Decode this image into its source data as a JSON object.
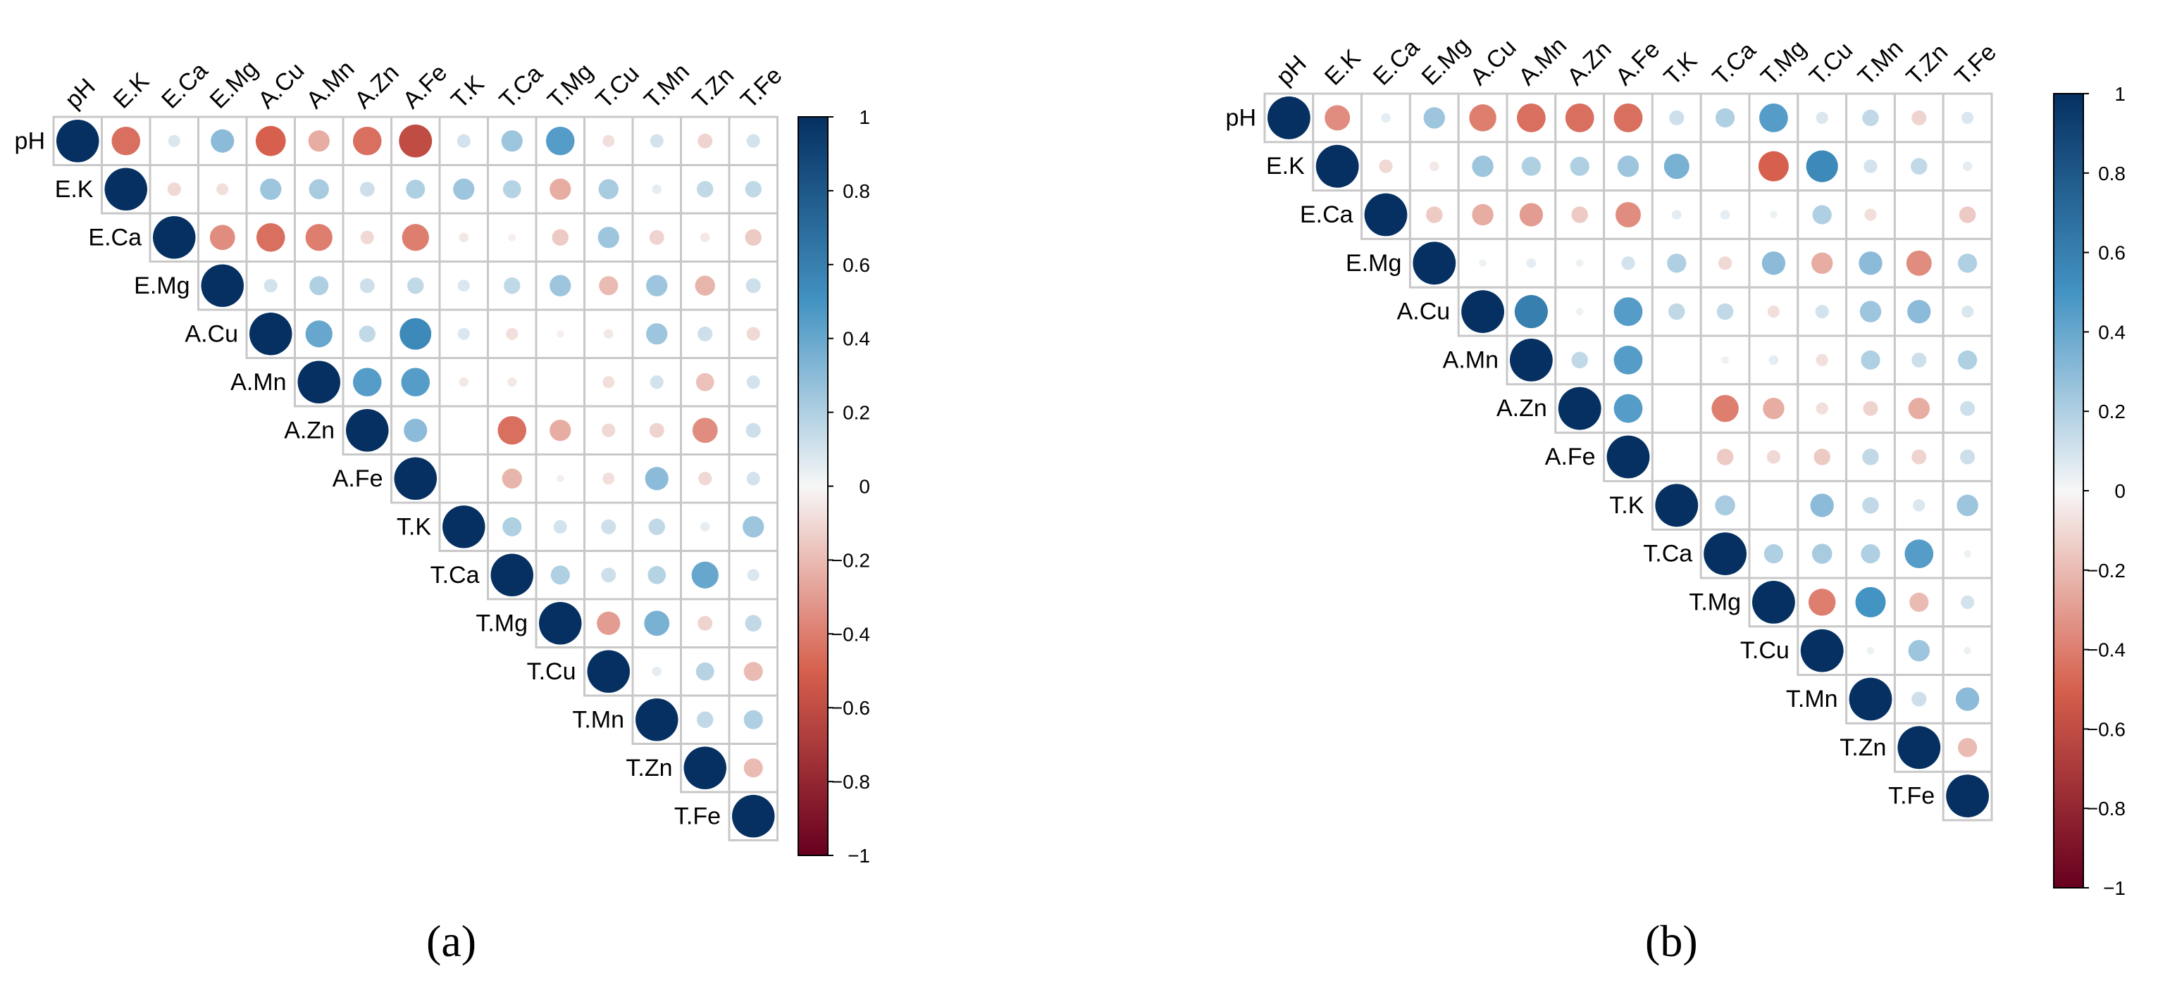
{
  "figure": {
    "labels": [
      "(a)",
      "(b)"
    ]
  },
  "colors": {
    "neg_max": "#67001f",
    "neg_mid": "#d6604d",
    "zero": "#f7f7f7",
    "pos_mid": "#4393c3",
    "pos_max": "#053061",
    "grid": "#c8c8c8"
  },
  "chart_data": [
    {
      "type": "heatmap",
      "panel": "(a)",
      "variables": [
        "pH",
        "E.K",
        "E.Ca",
        "E.Mg",
        "A.Cu",
        "A.Mn",
        "A.Zn",
        "A.Fe",
        "T.K",
        "T.Ca",
        "T.Mg",
        "T.Cu",
        "T.Mn",
        "T.Zn",
        "T.Fe"
      ],
      "matrix_upper": [
        [
          1,
          -0.45,
          0.08,
          0.3,
          -0.5,
          -0.25,
          -0.45,
          -0.6,
          0.1,
          0.25,
          0.45,
          -0.08,
          0.1,
          -0.12,
          0.1
        ],
        [
          1,
          -0.1,
          -0.08,
          0.25,
          0.22,
          0.12,
          0.2,
          0.25,
          0.18,
          -0.25,
          0.22,
          0.05,
          0.15,
          0.15
        ],
        [
          1,
          -0.35,
          -0.45,
          -0.4,
          -0.1,
          -0.4,
          -0.05,
          -0.03,
          -0.15,
          0.25,
          -0.12,
          -0.05,
          -0.15
        ],
        [
          1,
          0.1,
          0.2,
          0.12,
          0.15,
          0.08,
          0.15,
          0.25,
          -0.2,
          0.25,
          -0.22,
          0.12
        ],
        [
          1,
          0.4,
          0.15,
          0.55,
          0.08,
          -0.08,
          -0.03,
          -0.05,
          0.25,
          0.12,
          -0.1
        ],
        [
          1,
          0.45,
          0.45,
          -0.05,
          -0.05,
          0,
          -0.08,
          0.1,
          -0.18,
          0.1
        ],
        [
          1,
          0.3,
          0,
          -0.45,
          -0.25,
          -0.1,
          -0.12,
          -0.35,
          0.12
        ],
        [
          1,
          0,
          -0.22,
          -0.03,
          -0.08,
          0.3,
          -0.1,
          0.1
        ],
        [
          1,
          0.2,
          0.1,
          0.12,
          0.15,
          0.05,
          0.25
        ],
        [
          1,
          0.2,
          0.12,
          0.18,
          0.4,
          0.08
        ],
        [
          1,
          -0.3,
          0.35,
          -0.12,
          0.15
        ],
        [
          1,
          0.05,
          0.18,
          -0.2
        ],
        [
          1,
          0.15,
          0.2
        ],
        [
          1,
          -0.2
        ],
        [
          1
        ]
      ],
      "colorbar": {
        "ticks": [
          "1",
          "0.8",
          "0.6",
          "0.4",
          "0.2",
          "0",
          "−0.2",
          "−0.4",
          "−0.6",
          "−0.8",
          "−1"
        ],
        "range": [
          -1,
          1
        ]
      }
    },
    {
      "type": "heatmap",
      "panel": "(b)",
      "variables": [
        "pH",
        "E.K",
        "E.Ca",
        "E.Mg",
        "A.Cu",
        "A.Mn",
        "A.Zn",
        "A.Fe",
        "T.K",
        "T.Ca",
        "T.Mg",
        "T.Cu",
        "T.Mn",
        "T.Zn",
        "T.Fe"
      ],
      "matrix_upper": [
        [
          1,
          -0.35,
          0.05,
          0.25,
          -0.4,
          -0.45,
          -0.45,
          -0.45,
          0.12,
          0.2,
          0.45,
          0.08,
          0.15,
          -0.12,
          0.08
        ],
        [
          1,
          -0.1,
          -0.05,
          0.25,
          0.2,
          0.2,
          0.25,
          0.35,
          0,
          -0.5,
          0.55,
          0.1,
          0.15,
          0.05
        ],
        [
          1,
          -0.15,
          -0.25,
          -0.3,
          -0.15,
          -0.35,
          0.05,
          0.05,
          0.03,
          0.2,
          -0.08,
          0,
          -0.15
        ],
        [
          1,
          0.03,
          0.05,
          0.03,
          0.1,
          0.2,
          -0.1,
          0.3,
          -0.25,
          0.3,
          -0.35,
          0.2
        ],
        [
          1,
          0.6,
          0.03,
          0.45,
          0.15,
          0.15,
          -0.08,
          0.1,
          0.25,
          0.3,
          0.08
        ],
        [
          1,
          0.15,
          0.45,
          0,
          0.03,
          0.05,
          -0.08,
          0.2,
          0.12,
          0.2
        ],
        [
          1,
          0.45,
          0,
          -0.4,
          -0.25,
          -0.08,
          -0.12,
          -0.25,
          0.12
        ],
        [
          1,
          0,
          -0.15,
          -0.1,
          -0.15,
          0.15,
          -0.12,
          0.12
        ],
        [
          1,
          0.22,
          0,
          0.3,
          0.15,
          0.08,
          0.25
        ],
        [
          1,
          0.2,
          0.22,
          0.2,
          0.45,
          0.03
        ],
        [
          1,
          -0.4,
          0.5,
          -0.2,
          0.1
        ],
        [
          1,
          0.03,
          0.25,
          0.03
        ],
        [
          1,
          0.12,
          0.3
        ],
        [
          1,
          -0.2
        ],
        [
          1
        ]
      ],
      "colorbar": {
        "ticks": [
          "1",
          "0.8",
          "0.6",
          "0.4",
          "0.2",
          "0",
          "−0.2",
          "−0.4",
          "−0.6",
          "−0.8",
          "−1"
        ],
        "range": [
          -1,
          1
        ]
      }
    }
  ]
}
